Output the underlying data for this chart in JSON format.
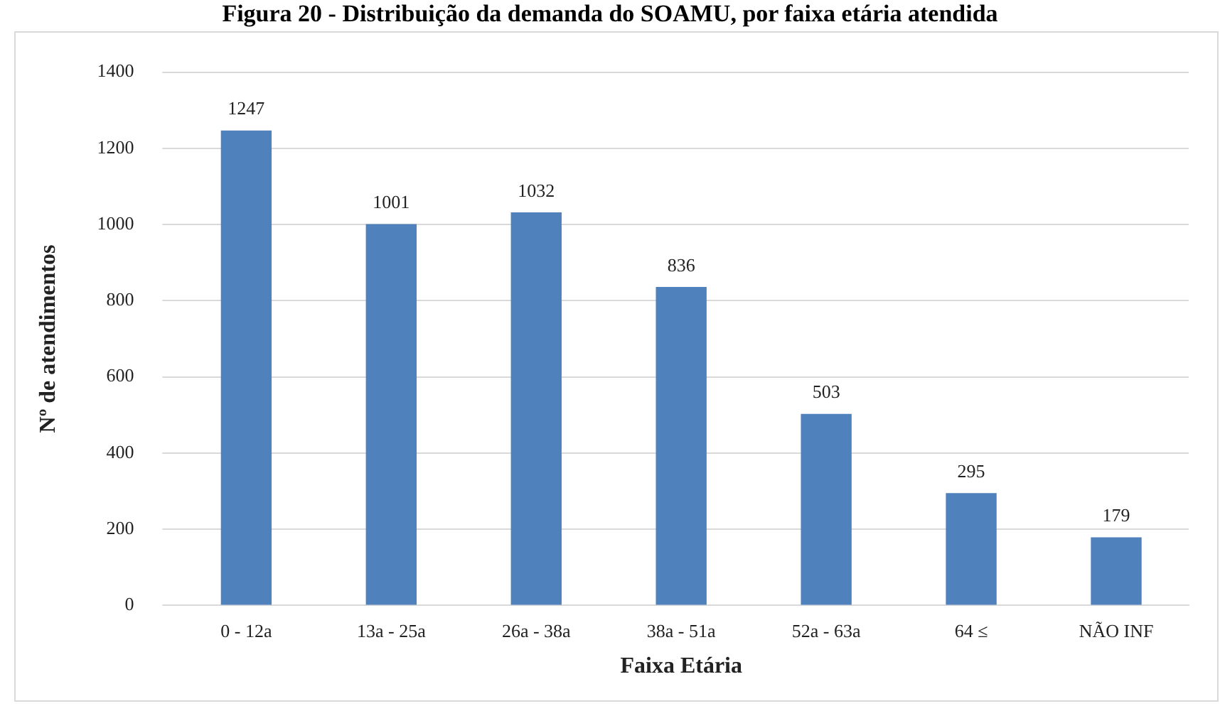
{
  "chart_data": {
    "type": "bar",
    "title": "Figura 20 - Distribuição da demanda do SOAMU, por faixa etária atendida",
    "xlabel": "Faixa Etária",
    "ylabel": "Nº de atendimentos",
    "categories": [
      "0 - 12a",
      "13a - 25a",
      "26a - 38a",
      "38a - 51a",
      "52a - 63a",
      "64 ≤",
      "NÃO INF"
    ],
    "values": [
      1247,
      1001,
      1032,
      836,
      503,
      295,
      179
    ],
    "color": "#4f81bd",
    "ylim": [
      0,
      1400
    ],
    "yticks": [
      0,
      200,
      400,
      600,
      800,
      1000,
      1200,
      1400
    ],
    "grid": "y",
    "data_labels": true,
    "legend": false
  }
}
